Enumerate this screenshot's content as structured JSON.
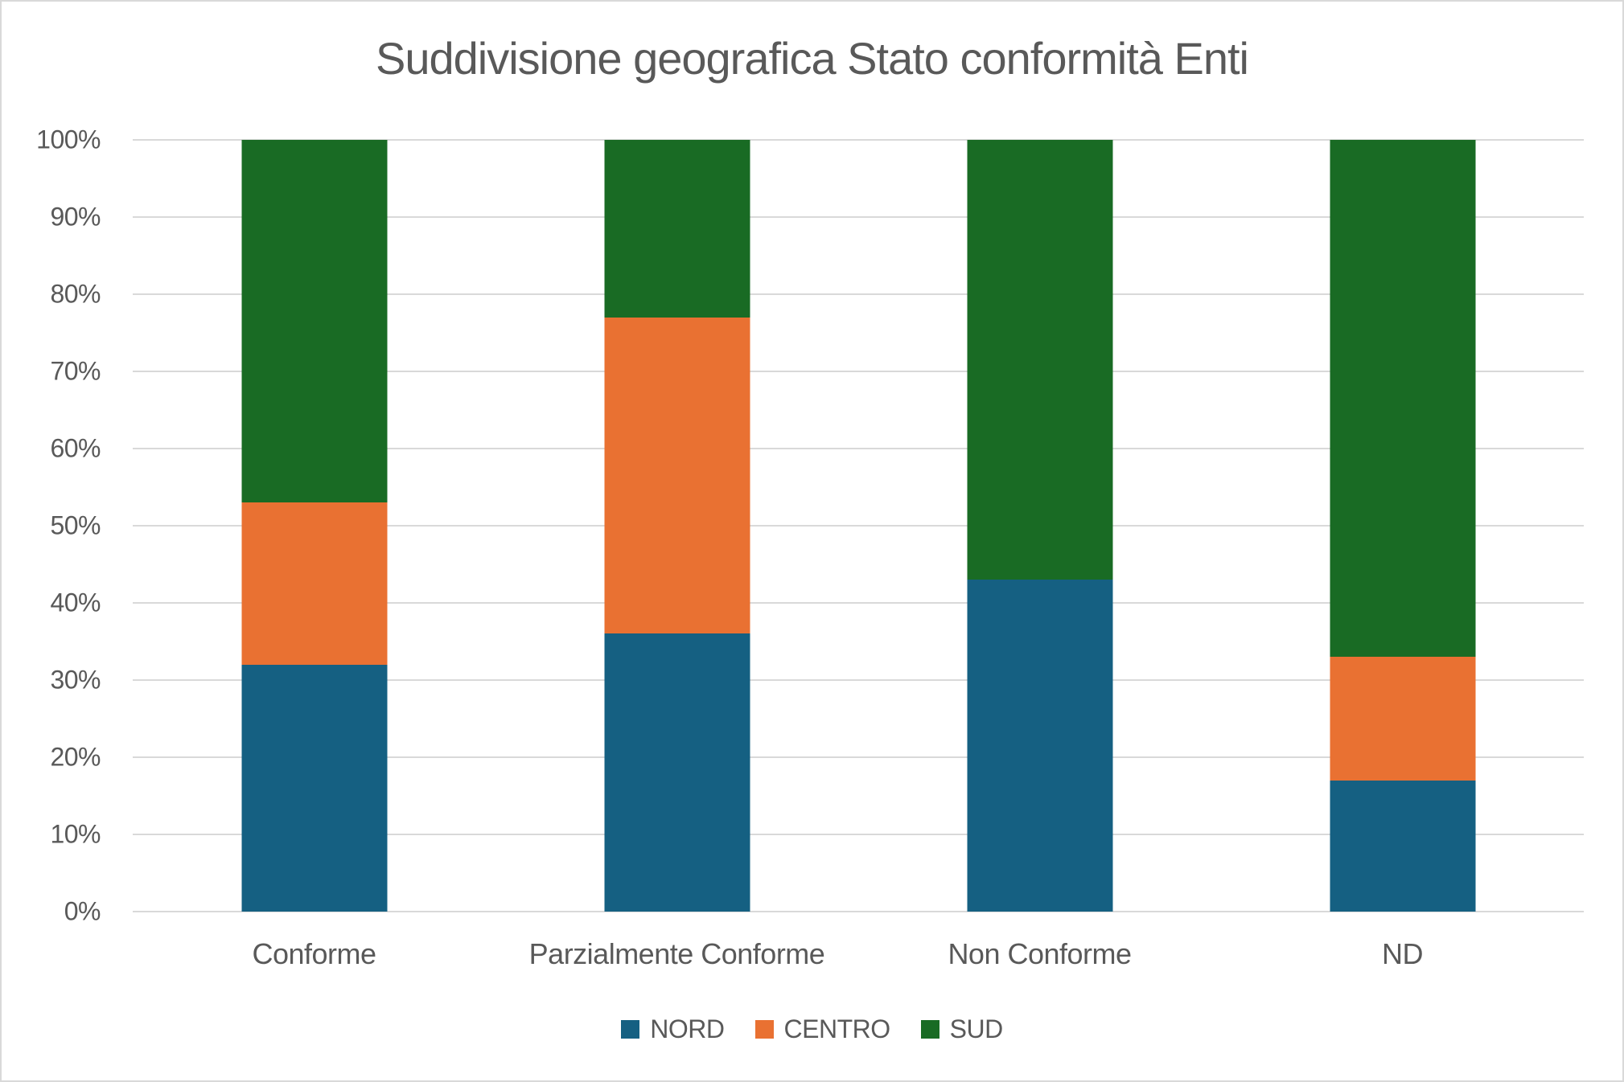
{
  "figure": {
    "background": "#FFFFFF",
    "border_color": "#D9D9D9",
    "text_color": "#595959"
  },
  "chart_data": {
    "type": "bar",
    "variant": "stacked-100-percent-column",
    "title": "Suddivisione geografica Stato conformità Enti",
    "categories": [
      "Conforme",
      "Parzialmente Conforme",
      "Non Conforme",
      "ND"
    ],
    "series": [
      {
        "name": "NORD",
        "color": "#156082",
        "values": [
          32,
          36,
          43,
          17
        ]
      },
      {
        "name": "CENTRO",
        "color": "#E97132",
        "values": [
          21,
          41,
          0,
          16
        ]
      },
      {
        "name": "SUD",
        "color": "#196B24",
        "values": [
          47,
          23,
          57,
          67
        ]
      }
    ],
    "value_unit": "%",
    "xlabel": "",
    "ylabel": "",
    "ylim": [
      0,
      100
    ],
    "y_tick_step": 10,
    "y_ticks": [
      "0%",
      "10%",
      "20%",
      "30%",
      "40%",
      "50%",
      "60%",
      "70%",
      "80%",
      "90%",
      "100%"
    ],
    "grid": "horizontal",
    "gridline_color": "#D9D9D9",
    "legend_position": "bottom",
    "legend_entries": [
      "NORD",
      "CENTRO",
      "SUD"
    ]
  }
}
